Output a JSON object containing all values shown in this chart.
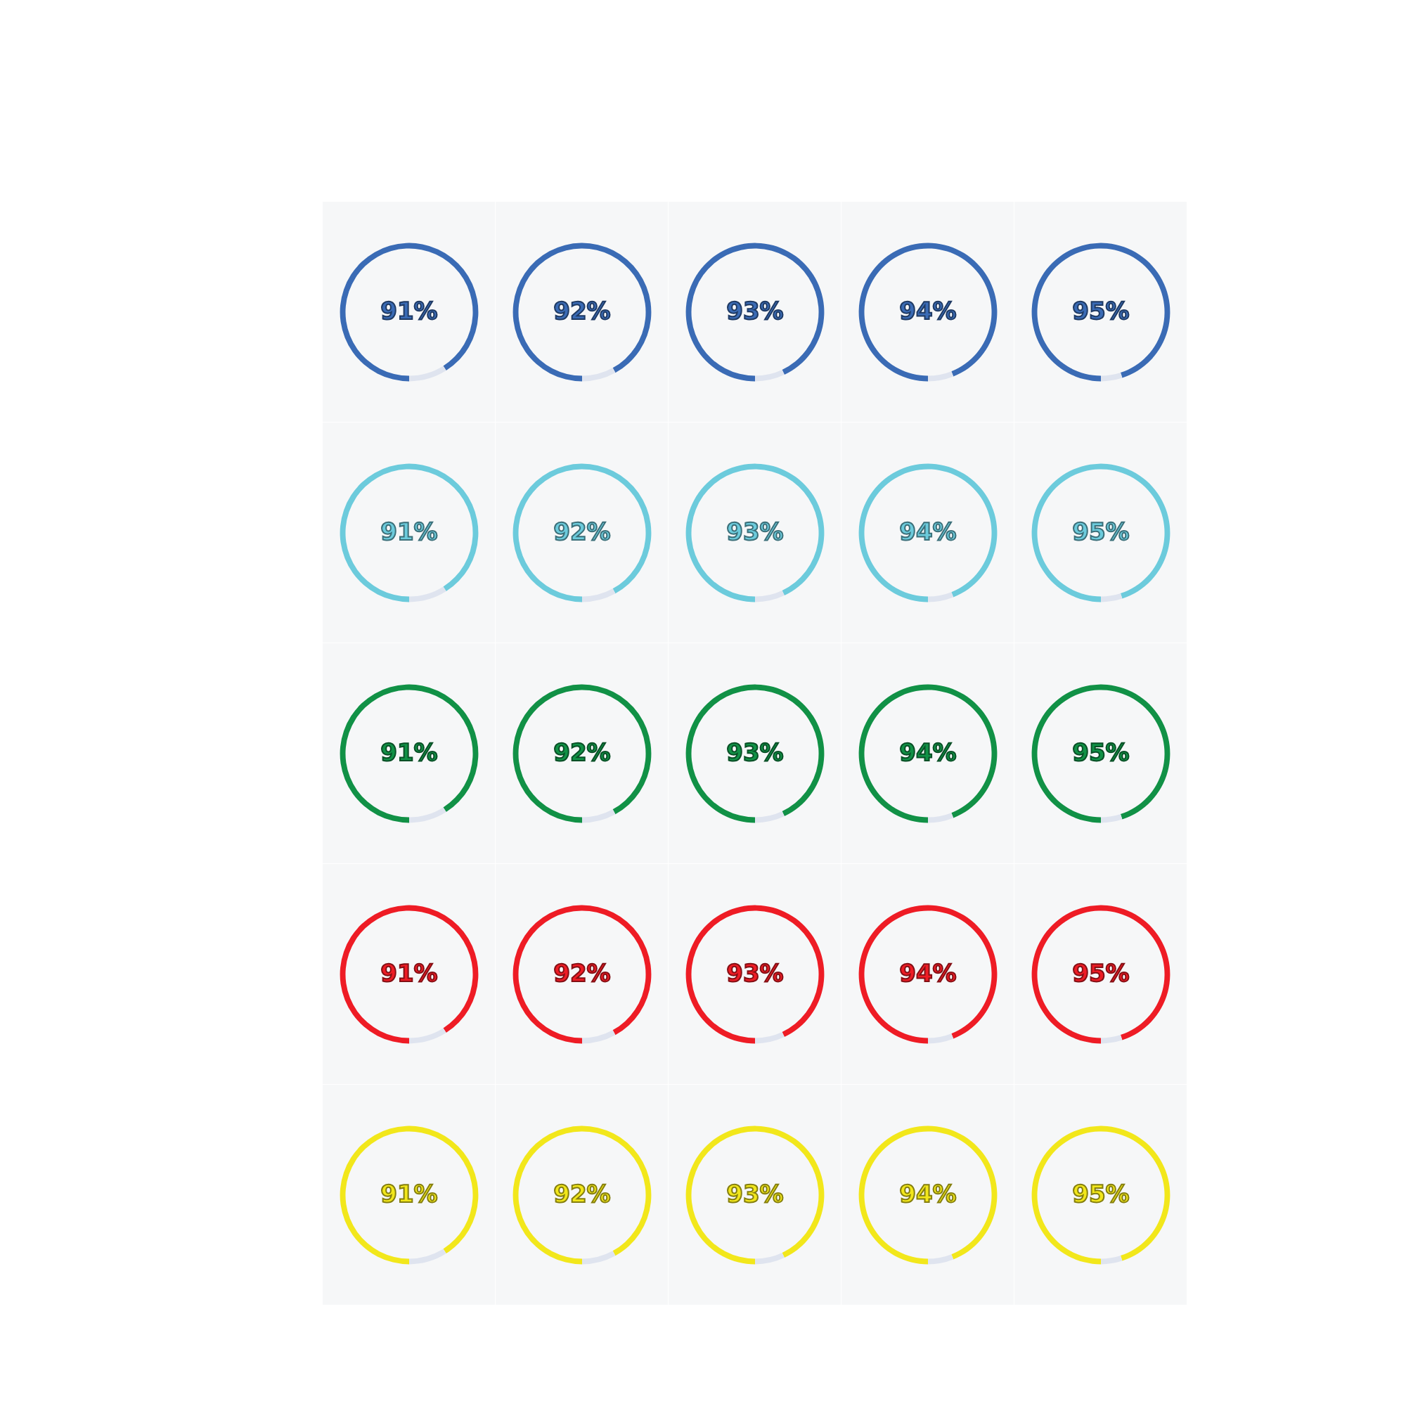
{
  "chart_data": [
    {
      "type": "donut",
      "categories": [
        null,
        null
      ],
      "values": [
        91,
        9
      ],
      "colors": [
        "#3a6bb5",
        "#dfe4ef"
      ],
      "annotations": [
        "91%"
      ]
    },
    {
      "type": "donut",
      "categories": [
        null,
        null
      ],
      "values": [
        92,
        8
      ],
      "colors": [
        "#3a6bb5",
        "#dfe4ef"
      ],
      "annotations": [
        "92%"
      ]
    },
    {
      "type": "donut",
      "categories": [
        null,
        null
      ],
      "values": [
        93,
        7
      ],
      "colors": [
        "#3a6bb5",
        "#dfe4ef"
      ],
      "annotations": [
        "93%"
      ]
    },
    {
      "type": "donut",
      "categories": [
        null,
        null
      ],
      "values": [
        94,
        6
      ],
      "colors": [
        "#3a6bb5",
        "#dfe4ef"
      ],
      "annotations": [
        "94%"
      ]
    },
    {
      "type": "donut",
      "categories": [
        null,
        null
      ],
      "values": [
        95,
        5
      ],
      "colors": [
        "#3a6bb5",
        "#dfe4ef"
      ],
      "annotations": [
        "95%"
      ]
    },
    {
      "type": "donut",
      "categories": [
        null,
        null
      ],
      "values": [
        91,
        9
      ],
      "colors": [
        "#6ccbdc",
        "#dfe4ef"
      ],
      "annotations": [
        "91%"
      ]
    },
    {
      "type": "donut",
      "categories": [
        null,
        null
      ],
      "values": [
        92,
        8
      ],
      "colors": [
        "#6ccbdc",
        "#dfe4ef"
      ],
      "annotations": [
        "92%"
      ]
    },
    {
      "type": "donut",
      "categories": [
        null,
        null
      ],
      "values": [
        93,
        7
      ],
      "colors": [
        "#6ccbdc",
        "#dfe4ef"
      ],
      "annotations": [
        "93%"
      ]
    },
    {
      "type": "donut",
      "categories": [
        null,
        null
      ],
      "values": [
        94,
        6
      ],
      "colors": [
        "#6ccbdc",
        "#dfe4ef"
      ],
      "annotations": [
        "94%"
      ]
    },
    {
      "type": "donut",
      "categories": [
        null,
        null
      ],
      "values": [
        95,
        5
      ],
      "colors": [
        "#6ccbdc",
        "#dfe4ef"
      ],
      "annotations": [
        "95%"
      ]
    },
    {
      "type": "donut",
      "categories": [
        null,
        null
      ],
      "values": [
        91,
        9
      ],
      "colors": [
        "#119146",
        "#dfe4ef"
      ],
      "annotations": [
        "91%"
      ]
    },
    {
      "type": "donut",
      "categories": [
        null,
        null
      ],
      "values": [
        92,
        8
      ],
      "colors": [
        "#119146",
        "#dfe4ef"
      ],
      "annotations": [
        "92%"
      ]
    },
    {
      "type": "donut",
      "categories": [
        null,
        null
      ],
      "values": [
        93,
        7
      ],
      "colors": [
        "#119146",
        "#dfe4ef"
      ],
      "annotations": [
        "93%"
      ]
    },
    {
      "type": "donut",
      "categories": [
        null,
        null
      ],
      "values": [
        94,
        6
      ],
      "colors": [
        "#119146",
        "#dfe4ef"
      ],
      "annotations": [
        "94%"
      ]
    },
    {
      "type": "donut",
      "categories": [
        null,
        null
      ],
      "values": [
        95,
        5
      ],
      "colors": [
        "#119146",
        "#dfe4ef"
      ],
      "annotations": [
        "95%"
      ]
    },
    {
      "type": "donut",
      "categories": [
        null,
        null
      ],
      "values": [
        91,
        9
      ],
      "colors": [
        "#ee1c25",
        "#dfe4ef"
      ],
      "annotations": [
        "91%"
      ]
    },
    {
      "type": "donut",
      "categories": [
        null,
        null
      ],
      "values": [
        92,
        8
      ],
      "colors": [
        "#ee1c25",
        "#dfe4ef"
      ],
      "annotations": [
        "92%"
      ]
    },
    {
      "type": "donut",
      "categories": [
        null,
        null
      ],
      "values": [
        93,
        7
      ],
      "colors": [
        "#ee1c25",
        "#dfe4ef"
      ],
      "annotations": [
        "93%"
      ]
    },
    {
      "type": "donut",
      "categories": [
        null,
        null
      ],
      "values": [
        94,
        6
      ],
      "colors": [
        "#ee1c25",
        "#dfe4ef"
      ],
      "annotations": [
        "94%"
      ]
    },
    {
      "type": "donut",
      "categories": [
        null,
        null
      ],
      "values": [
        95,
        5
      ],
      "colors": [
        "#ee1c25",
        "#dfe4ef"
      ],
      "annotations": [
        "95%"
      ]
    },
    {
      "type": "donut",
      "categories": [
        null,
        null
      ],
      "values": [
        91,
        9
      ],
      "colors": [
        "#f2e71b",
        "#dfe4ef"
      ],
      "annotations": [
        "91%"
      ]
    },
    {
      "type": "donut",
      "categories": [
        null,
        null
      ],
      "values": [
        92,
        8
      ],
      "colors": [
        "#f2e71b",
        "#dfe4ef"
      ],
      "annotations": [
        "92%"
      ]
    },
    {
      "type": "donut",
      "categories": [
        null,
        null
      ],
      "values": [
        93,
        7
      ],
      "colors": [
        "#f2e71b",
        "#dfe4ef"
      ],
      "annotations": [
        "93%"
      ]
    },
    {
      "type": "donut",
      "categories": [
        null,
        null
      ],
      "values": [
        94,
        6
      ],
      "colors": [
        "#f2e71b",
        "#dfe4ef"
      ],
      "annotations": [
        "94%"
      ]
    },
    {
      "type": "donut",
      "categories": [
        null,
        null
      ],
      "values": [
        95,
        5
      ],
      "colors": [
        "#f2e71b",
        "#dfe4ef"
      ],
      "annotations": [
        "95%"
      ]
    }
  ]
}
